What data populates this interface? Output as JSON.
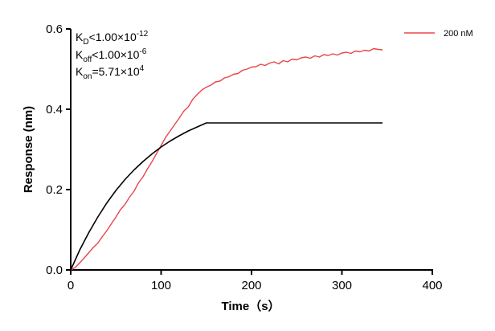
{
  "chart_data": {
    "type": "line",
    "xlabel": "Time（s）",
    "ylabel": "Response (nm)",
    "xlim": [
      0,
      400
    ],
    "ylim": [
      0,
      0.6
    ],
    "xticks": [
      "0",
      "100",
      "200",
      "300",
      "400"
    ],
    "yticks": [
      "0.0",
      "0.2",
      "0.4",
      "0.6"
    ],
    "grid": false,
    "legend_position": "top-right",
    "annotations": {
      "kd": {
        "sym": "K",
        "sub": "D",
        "rel": "<1.00×10",
        "exp": "-12"
      },
      "koff": {
        "sym": "K",
        "sub": "off",
        "rel": "<1.00×10",
        "exp": "-6"
      },
      "kon": {
        "sym": "K",
        "sub": "on",
        "rel": "=5.71×10",
        "exp": "4"
      }
    },
    "series": [
      {
        "name": "200 nM",
        "color": "#e8464a",
        "x": [
          0,
          5,
          10,
          15,
          20,
          25,
          30,
          35,
          40,
          45,
          50,
          55,
          60,
          65,
          70,
          75,
          80,
          85,
          90,
          95,
          100,
          105,
          110,
          115,
          120,
          125,
          130,
          135,
          140,
          145,
          150,
          155,
          160,
          165,
          170,
          175,
          180,
          185,
          190,
          195,
          200,
          205,
          210,
          215,
          220,
          225,
          230,
          235,
          240,
          245,
          250,
          255,
          260,
          265,
          270,
          275,
          280,
          285,
          290,
          295,
          300,
          305,
          310,
          315,
          320,
          325,
          330,
          335,
          340,
          345
        ],
        "y": [
          0.0,
          0.006,
          0.018,
          0.03,
          0.043,
          0.056,
          0.067,
          0.083,
          0.098,
          0.115,
          0.132,
          0.15,
          0.163,
          0.181,
          0.196,
          0.217,
          0.232,
          0.252,
          0.27,
          0.29,
          0.31,
          0.33,
          0.346,
          0.362,
          0.378,
          0.395,
          0.406,
          0.425,
          0.437,
          0.448,
          0.455,
          0.46,
          0.468,
          0.47,
          0.478,
          0.481,
          0.487,
          0.489,
          0.497,
          0.5,
          0.505,
          0.506,
          0.512,
          0.509,
          0.515,
          0.518,
          0.513,
          0.521,
          0.518,
          0.525,
          0.523,
          0.528,
          0.53,
          0.527,
          0.533,
          0.53,
          0.536,
          0.534,
          0.538,
          0.535,
          0.54,
          0.542,
          0.539,
          0.545,
          0.543,
          0.547,
          0.545,
          0.551,
          0.549,
          0.548
        ]
      },
      {
        "color": "#000000",
        "x": [
          0,
          10,
          20,
          30,
          40,
          50,
          60,
          70,
          80,
          90,
          100,
          110,
          120,
          130,
          140,
          150,
          345
        ],
        "y": [
          0,
          0.05,
          0.093,
          0.132,
          0.167,
          0.198,
          0.225,
          0.249,
          0.27,
          0.289,
          0.306,
          0.321,
          0.334,
          0.346,
          0.356,
          0.366,
          0.366
        ]
      }
    ]
  }
}
